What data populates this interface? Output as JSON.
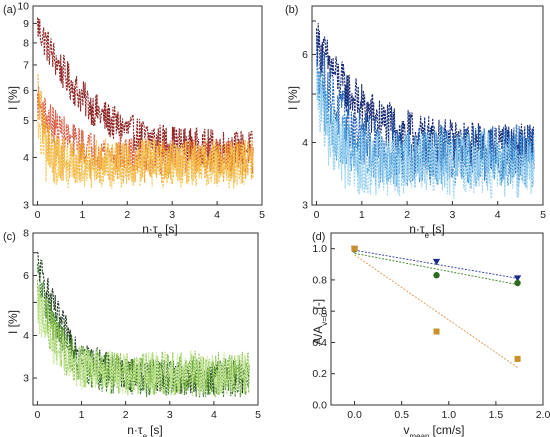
{
  "figure": {
    "background": "#ffffff",
    "axis_color": "#333333"
  },
  "chart_data": [
    {
      "panel_label": "(a)",
      "type": "scatter",
      "xlabel": {
        "main": "n·τ",
        "sub": "e",
        "unit": "[s]"
      },
      "ylabel": "I [%]",
      "y_scale": "log",
      "xlim": [
        -0.1,
        5
      ],
      "ylim": [
        3,
        10
      ],
      "x_ticks": [
        0,
        1,
        2,
        3,
        4,
        5
      ],
      "y_ticks": [
        3,
        4,
        5,
        6,
        7,
        8,
        9,
        10
      ],
      "y_tick_labels": [
        "3",
        "4",
        "5",
        "6",
        "7",
        "8",
        "9",
        "10"
      ],
      "series": [
        {
          "color": "#8b1a1a",
          "x_range": [
            0,
            4.8
          ],
          "start": 8.9,
          "end": 4.2,
          "tau": 0.9,
          "noise": 0.05
        },
        {
          "color": "#d9533a",
          "x_range": [
            0,
            4.8
          ],
          "start": 5.6,
          "end": 4.0,
          "tau": 0.6,
          "noise": 0.05
        },
        {
          "color": "#f0a020",
          "x_range": [
            0,
            4.8
          ],
          "start": 6.2,
          "end": 3.9,
          "tau": 0.15,
          "noise": 0.06
        },
        {
          "color": "#f5c65a",
          "x_range": [
            0,
            4.8
          ],
          "start": 4.8,
          "end": 3.85,
          "tau": 0.1,
          "noise": 0.07
        }
      ]
    },
    {
      "panel_label": "(b)",
      "type": "scatter",
      "xlabel": {
        "main": "n·τ",
        "sub": "e",
        "unit": "[s]"
      },
      "ylabel": "I [%]",
      "y_scale": "log",
      "xlim": [
        -0.1,
        5
      ],
      "ylim": [
        3,
        7.5
      ],
      "x_ticks": [
        0,
        1,
        2,
        3,
        4,
        5
      ],
      "y_ticks": [
        3,
        4,
        5,
        6,
        7
      ],
      "y_tick_labels": [
        "3",
        "4",
        "",
        "6",
        ""
      ],
      "series": [
        {
          "color": "#0b1e6e",
          "x_range": [
            0,
            4.8
          ],
          "start": 6.4,
          "end": 3.9,
          "tau": 0.9,
          "noise": 0.05
        },
        {
          "color": "#1f5fb4",
          "x_range": [
            0,
            4.8
          ],
          "start": 6.0,
          "end": 3.8,
          "tau": 0.5,
          "noise": 0.06
        },
        {
          "color": "#4aa0dc",
          "x_range": [
            0,
            4.8
          ],
          "start": 5.4,
          "end": 3.7,
          "tau": 0.35,
          "noise": 0.06
        },
        {
          "color": "#9ed2f0",
          "x_range": [
            0,
            4.8
          ],
          "start": 5.0,
          "end": 3.6,
          "tau": 0.3,
          "noise": 0.07
        }
      ]
    },
    {
      "panel_label": "(c)",
      "type": "scatter",
      "xlabel": {
        "main": "n·τ",
        "sub": "e",
        "unit": "[s]"
      },
      "ylabel": "I [%]",
      "y_scale": "log",
      "xlim": [
        -0.1,
        5
      ],
      "ylim": [
        2.5,
        8
      ],
      "x_ticks": [
        0,
        1,
        2,
        3,
        4,
        5
      ],
      "y_ticks": [
        3,
        4,
        5,
        6,
        7,
        8
      ],
      "y_tick_labels": [
        "3",
        "4",
        "",
        "6",
        "",
        "8"
      ],
      "series": [
        {
          "color": "#0e2a10",
          "x_range": [
            0,
            4.8
          ],
          "start": 6.6,
          "end": 3.0,
          "tau": 0.55,
          "noise": 0.05
        },
        {
          "color": "#3c7a2a",
          "x_range": [
            0,
            4.8
          ],
          "start": 6.0,
          "end": 3.0,
          "tau": 0.45,
          "noise": 0.06
        },
        {
          "color": "#8cc44e",
          "x_range": [
            0,
            4.8
          ],
          "start": 5.3,
          "end": 3.1,
          "tau": 0.4,
          "noise": 0.07
        },
        {
          "color": "#c6e79a",
          "x_range": [
            0,
            4.8
          ],
          "start": 4.8,
          "end": 3.1,
          "tau": 0.4,
          "noise": 0.07
        }
      ]
    },
    {
      "panel_label": "(d)",
      "type": "scatter",
      "xlabel": {
        "main": "v",
        "sub": "mean",
        "unit": "[cm/s]"
      },
      "ylabel": {
        "main": "A/A",
        "sub": "v=0",
        "unit": "[-]"
      },
      "y_scale": "linear",
      "xlim": [
        -0.25,
        2.0
      ],
      "ylim": [
        0.0,
        1.1
      ],
      "x_ticks": [
        0.0,
        0.5,
        1.0,
        1.5,
        2.0
      ],
      "x_tick_labels": [
        "0.0",
        "0.5",
        "1.0",
        "1.5",
        "2.0"
      ],
      "y_ticks": [
        0.0,
        0.2,
        0.4,
        0.6,
        0.8,
        1.0
      ],
      "y_tick_labels": [
        "0.0",
        "0.2",
        "0.4",
        "0.6",
        "0.8",
        "1.0"
      ],
      "series": [
        {
          "color": "#1a2a8c",
          "marker": "triangle-down",
          "x": [
            0,
            0.87,
            1.73
          ],
          "y": [
            0.995,
            0.915,
            0.81
          ],
          "fit": {
            "x": [
              0,
              1.73
            ],
            "y": [
              0.99,
              0.81
            ],
            "color": "#3a4aa8"
          }
        },
        {
          "color": "#2e6b1e",
          "marker": "circle",
          "x": [
            0,
            0.87,
            1.73
          ],
          "y": [
            0.995,
            0.83,
            0.78
          ],
          "fit": {
            "x": [
              0,
              1.73
            ],
            "y": [
              0.97,
              0.77
            ],
            "color": "#4b8a3a"
          }
        },
        {
          "color": "#c8902a",
          "marker": "square",
          "x": [
            0,
            0.87,
            1.73
          ],
          "y": [
            1.0,
            0.47,
            0.295
          ],
          "fit": {
            "x": [
              0,
              1.73
            ],
            "y": [
              0.96,
              0.24
            ],
            "color": "#e0a060"
          }
        }
      ]
    }
  ]
}
